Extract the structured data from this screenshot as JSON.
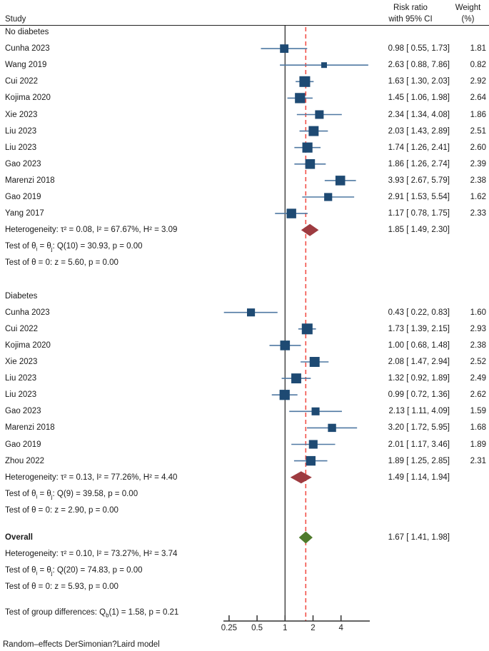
{
  "header": {
    "study_col": "Study",
    "effect_col_line1": "Risk ratio",
    "effect_col_line2": "with 95% CI",
    "weight_col_line1": "Weight",
    "weight_col_line2": "(%)"
  },
  "footer": "Random–effects DerSimonian?Laird model",
  "colors": {
    "square": "#1e4a73",
    "whisker": "#4f78a2",
    "subgroup_diamond": "#9e3b40",
    "overall_diamond": "#4e7a2b",
    "ref_line": "#303030",
    "overall_dashed_line": "#f25048",
    "text": "#1a1a1a"
  },
  "axis": {
    "tick_values": [
      0.25,
      0.5,
      1,
      2,
      4
    ],
    "tick_labels": [
      "0.25",
      "0.5",
      "1",
      "2",
      "4"
    ]
  },
  "chart_data": {
    "type": "forest",
    "effect_measure": "Risk ratio",
    "scale": "log2",
    "ref_value": 1,
    "overall_marker_line": 1.67,
    "xlim": [
      0.22,
      8.2
    ],
    "groups": [
      {
        "label": "No diabetes",
        "studies": [
          {
            "label": "Cunha 2023",
            "est": 0.98,
            "lo": 0.55,
            "hi": 1.73,
            "ci": "0.98 [ 0.55, 1.73]",
            "weight": "1.81"
          },
          {
            "label": "Wang 2019",
            "est": 2.63,
            "lo": 0.88,
            "hi": 7.86,
            "ci": "2.63 [ 0.88, 7.86]",
            "weight": "0.82"
          },
          {
            "label": "Cui 2022",
            "est": 1.63,
            "lo": 1.3,
            "hi": 2.03,
            "ci": "1.63 [ 1.30, 2.03]",
            "weight": "2.92"
          },
          {
            "label": "Kojima 2020",
            "est": 1.45,
            "lo": 1.06,
            "hi": 1.98,
            "ci": "1.45 [ 1.06, 1.98]",
            "weight": "2.64"
          },
          {
            "label": "Xie 2023",
            "est": 2.34,
            "lo": 1.34,
            "hi": 4.08,
            "ci": "2.34 [ 1.34, 4.08]",
            "weight": "1.86"
          },
          {
            "label": "Liu 2023",
            "est": 2.03,
            "lo": 1.43,
            "hi": 2.89,
            "ci": "2.03 [ 1.43, 2.89]",
            "weight": "2.51"
          },
          {
            "label": "Liu 2023",
            "est": 1.74,
            "lo": 1.26,
            "hi": 2.41,
            "ci": "1.74 [ 1.26, 2.41]",
            "weight": "2.60"
          },
          {
            "label": "Gao 2023",
            "est": 1.86,
            "lo": 1.26,
            "hi": 2.74,
            "ci": "1.86 [ 1.26, 2.74]",
            "weight": "2.39"
          },
          {
            "label": "Marenzi 2018",
            "est": 3.93,
            "lo": 2.67,
            "hi": 5.79,
            "ci": "3.93 [ 2.67, 5.79]",
            "weight": "2.38"
          },
          {
            "label": "Gao 2019",
            "est": 2.91,
            "lo": 1.53,
            "hi": 5.54,
            "ci": "2.91 [ 1.53, 5.54]",
            "weight": "1.62"
          },
          {
            "label": "Yang 2017",
            "est": 1.17,
            "lo": 0.78,
            "hi": 1.75,
            "ci": "1.17 [ 0.78, 1.75]",
            "weight": "2.33"
          }
        ],
        "summary": {
          "est": 1.85,
          "lo": 1.49,
          "hi": 2.3,
          "ci": "1.85 [ 1.49, 2.30]"
        },
        "heterogeneity": "Heterogeneity: τ² = 0.08, I² = 67.67%, H² = 3.09",
        "test_q": "Test of θ{i} = θ{j}: Q(10) = 30.93, p = 0.00",
        "test_z": "Test of θ = 0: z = 5.60, p = 0.00"
      },
      {
        "label": "Diabetes",
        "studies": [
          {
            "label": "Cunha 2023",
            "est": 0.43,
            "lo": 0.22,
            "hi": 0.83,
            "ci": "0.43 [ 0.22, 0.83]",
            "weight": "1.60"
          },
          {
            "label": "Cui 2022",
            "est": 1.73,
            "lo": 1.39,
            "hi": 2.15,
            "ci": "1.73 [ 1.39, 2.15]",
            "weight": "2.93"
          },
          {
            "label": "Kojima 2020",
            "est": 1.0,
            "lo": 0.68,
            "hi": 1.48,
            "ci": "1.00 [ 0.68, 1.48]",
            "weight": "2.38"
          },
          {
            "label": "Xie 2023",
            "est": 2.08,
            "lo": 1.47,
            "hi": 2.94,
            "ci": "2.08 [ 1.47, 2.94]",
            "weight": "2.52"
          },
          {
            "label": "Liu 2023",
            "est": 1.32,
            "lo": 0.92,
            "hi": 1.89,
            "ci": "1.32 [ 0.92, 1.89]",
            "weight": "2.49"
          },
          {
            "label": "Liu 2023",
            "est": 0.99,
            "lo": 0.72,
            "hi": 1.36,
            "ci": "0.99 [ 0.72, 1.36]",
            "weight": "2.62"
          },
          {
            "label": "Gao 2023",
            "est": 2.13,
            "lo": 1.11,
            "hi": 4.09,
            "ci": "2.13 [ 1.11, 4.09]",
            "weight": "1.59"
          },
          {
            "label": "Marenzi 2018",
            "est": 3.2,
            "lo": 1.72,
            "hi": 5.95,
            "ci": "3.20 [ 1.72, 5.95]",
            "weight": "1.68"
          },
          {
            "label": "Gao 2019",
            "est": 2.01,
            "lo": 1.17,
            "hi": 3.46,
            "ci": "2.01 [ 1.17, 3.46]",
            "weight": "1.89"
          },
          {
            "label": "Zhou 2022",
            "est": 1.89,
            "lo": 1.25,
            "hi": 2.85,
            "ci": "1.89 [ 1.25, 2.85]",
            "weight": "2.31"
          }
        ],
        "summary": {
          "est": 1.49,
          "lo": 1.14,
          "hi": 1.94,
          "ci": "1.49 [ 1.14, 1.94]"
        },
        "heterogeneity": "Heterogeneity: τ² = 0.13, I² = 77.26%, H² = 4.40",
        "test_q": "Test of θ{i} = θ{j}: Q(9) = 39.58, p = 0.00",
        "test_z": "Test of θ = 0: z = 2.90, p = 0.00"
      }
    ],
    "overall": {
      "label": "Overall",
      "summary": {
        "est": 1.67,
        "lo": 1.41,
        "hi": 1.98,
        "ci": "1.67 [ 1.41, 1.98]"
      },
      "heterogeneity": "Heterogeneity: τ² = 0.10, I² = 73.27%, H² = 3.74",
      "test_q": "Test of θ{i} = θ{j}: Q(20) = 74.83, p = 0.00",
      "test_z": "Test of θ = 0: z = 5.93, p = 0.00"
    },
    "group_difference": "Test of group differences: Q{b}(1) = 1.58, p = 0.21"
  }
}
